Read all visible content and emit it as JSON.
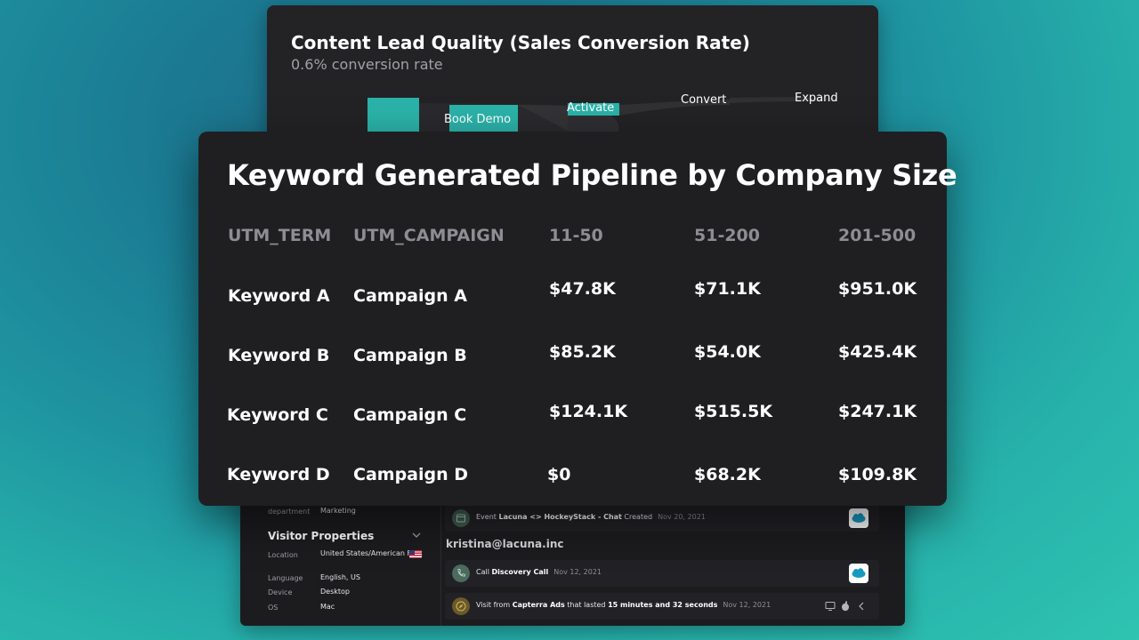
{
  "funnel": {
    "title": "Content Lead Quality (Sales Conversion Rate)",
    "subtitle": "0.6% conversion rate",
    "stages": [
      {
        "label": "Book Demo"
      },
      {
        "label": "Activate"
      },
      {
        "label": "Convert"
      },
      {
        "label": "Expand"
      }
    ],
    "bar_color": "#2bb3a9"
  },
  "pipeline": {
    "title": "Keyword Generated Pipeline by Company Size",
    "columns": [
      "UTM_TERM",
      "UTM_CAMPAIGN",
      "11-50",
      "51-200",
      "201-500"
    ],
    "rows": [
      [
        "Keyword A",
        "Campaign A",
        "$47.8K",
        "$71.1K",
        "$951.0K"
      ],
      [
        "Keyword B",
        "Campaign B",
        "$85.2K",
        "$54.0K",
        "$425.4K"
      ],
      [
        "Keyword C",
        "Campaign C",
        "$124.1K",
        "$515.5K",
        "$247.1K"
      ],
      [
        "Keyword D",
        "Campaign D",
        "$0",
        "$68.2K",
        "$109.8K"
      ]
    ]
  },
  "activity": {
    "department": {
      "key": "department",
      "value": "Marketing"
    },
    "visitor_properties": {
      "title": "Visitor Properties",
      "props": [
        {
          "key": "Location",
          "value": "United States/American Fork"
        },
        {
          "key": "Language",
          "value": "English, US"
        },
        {
          "key": "Device",
          "value": "Desktop"
        },
        {
          "key": "OS",
          "value": "Mac"
        }
      ]
    },
    "email": "kristina@lacuna.inc",
    "events": [
      {
        "prefix": "Event ",
        "bold": "Lacuna <> HockeyStack - Chat",
        "suffix": " Created",
        "date": "Nov 20, 2021",
        "icon": "calendar-icon"
      },
      {
        "prefix": "Call ",
        "bold": "Discovery Call",
        "suffix": "",
        "date": "Nov 12, 2021",
        "icon": "phone-icon"
      },
      {
        "prefix": "Visit from ",
        "bold": "Capterra Ads",
        "middle": " that lasted ",
        "bold2": "15 minutes and 32 seconds",
        "suffix": "",
        "date": "Nov 12, 2021",
        "icon": "compass-icon"
      }
    ],
    "salesforce_icon": "salesforce-cloud-icon"
  }
}
